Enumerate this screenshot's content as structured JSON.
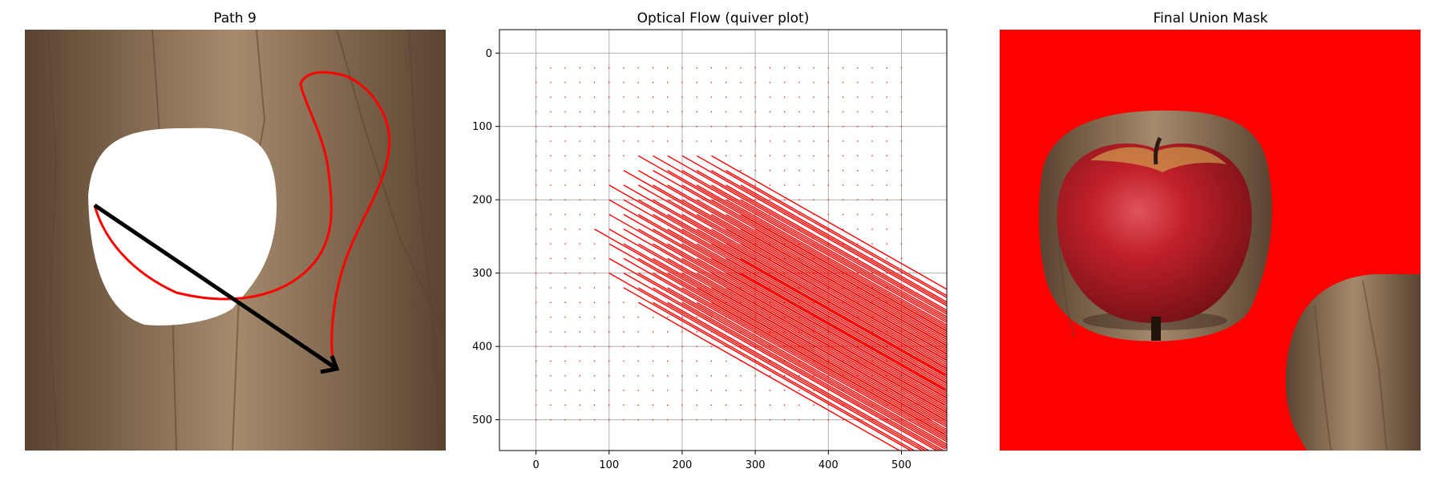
{
  "figure": {
    "panels": [
      {
        "title": "Path 9"
      },
      {
        "title": "Optical Flow (quiver plot)"
      },
      {
        "title": "Final Union Mask"
      }
    ]
  },
  "colors": {
    "flow_arrow": "#ff0000",
    "path_curve": "#ff0000",
    "drag_arrow": "#000000",
    "mask_fill": "#ff0000",
    "object_mask": "#ffffff",
    "grid": "#b0b0b0",
    "wood_light": "#a58a6c",
    "wood_dark": "#5a4330",
    "apple_red": "#c1202a",
    "apple_yellow": "#d9c35a"
  },
  "icons": [
    "apple-image",
    "wood-table-background"
  ],
  "chart_data": {
    "type": "quiver",
    "title": "Optical Flow (quiver plot)",
    "xlabel": "",
    "ylabel": "",
    "xlim": [
      -50,
      562
    ],
    "ylim": [
      542,
      -32
    ],
    "y_inverted": true,
    "grid": true,
    "xticks": [
      0,
      100,
      200,
      300,
      400,
      500
    ],
    "yticks": [
      0,
      100,
      200,
      300,
      400,
      500
    ],
    "arrow_grid_spacing": 20,
    "arrow_grid_x_range": [
      0,
      500
    ],
    "arrow_grid_y_range": [
      20,
      500
    ],
    "moving_region_flow": {
      "dx": 460,
      "dy": 260
    },
    "moving_region_bbox": {
      "x": [
        80,
        300
      ],
      "y": [
        120,
        360
      ]
    }
  }
}
